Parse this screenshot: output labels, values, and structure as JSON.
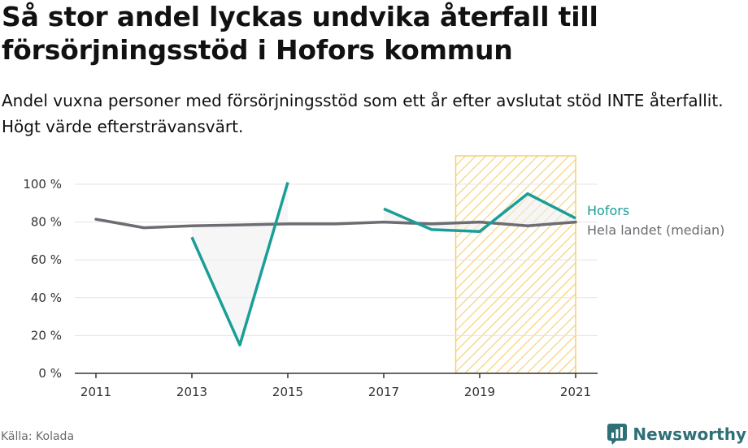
{
  "title": "Så stor andel lyckas undvika återfall till försörjningsstöd i Hofors kommun",
  "subtitle": "Andel vuxna personer med försörjningsstöd som ett år efter avslutat stöd INTE återfallit. Högt värde eftersträvansvärt.",
  "source": "Källa: Kolada",
  "brand": "Newsworthy",
  "colors": {
    "hofors": "#1a9e97",
    "median": "#6c6c72",
    "highlight": "#f5cf6e",
    "area": "#eeeeee",
    "axis": "#333333",
    "grid": "#e4e4e4"
  },
  "chart_data": {
    "type": "line",
    "x": [
      2011,
      2012,
      2013,
      2014,
      2015,
      2016,
      2017,
      2018,
      2019,
      2020,
      2021
    ],
    "xticks": [
      2011,
      2013,
      2015,
      2017,
      2019,
      2021
    ],
    "xtick_labels": [
      "2011",
      "2013",
      "2015",
      "2017",
      "2019",
      "2021"
    ],
    "ylim": [
      0,
      100
    ],
    "yticks": [
      0,
      20,
      40,
      60,
      80,
      100
    ],
    "ytick_labels": [
      "0 %",
      "20 %",
      "40 %",
      "60 %",
      "80 %",
      "100 %"
    ],
    "highlight_range": [
      2018.5,
      2021
    ],
    "series": [
      {
        "name": "Hofors",
        "values": [
          null,
          null,
          72,
          15,
          101,
          null,
          87,
          76,
          75,
          95,
          82
        ]
      },
      {
        "name": "Hela landet (median)",
        "values": [
          81.5,
          77,
          78,
          78.5,
          79,
          79,
          80,
          79,
          80,
          78,
          80
        ]
      }
    ]
  }
}
